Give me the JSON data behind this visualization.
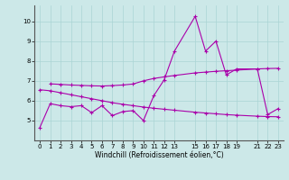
{
  "xlabel": "Windchill (Refroidissement éolien,°C)",
  "ylabel": "",
  "bg_color": "#cce8e8",
  "line_color": "#aa00aa",
  "grid_color": "#aad4d4",
  "xlim": [
    -0.5,
    23.5
  ],
  "ylim": [
    4.0,
    10.8
  ],
  "yticks": [
    5,
    6,
    7,
    8,
    9,
    10
  ],
  "xticks": [
    0,
    1,
    2,
    3,
    4,
    5,
    6,
    7,
    8,
    9,
    10,
    11,
    12,
    13,
    15,
    16,
    17,
    18,
    19,
    21,
    22,
    23
  ],
  "main_x": [
    0,
    1,
    2,
    3,
    4,
    5,
    6,
    7,
    8,
    9,
    10,
    11,
    12,
    13,
    15,
    16,
    17,
    18,
    19,
    21,
    22,
    23
  ],
  "main_y": [
    4.65,
    5.85,
    5.75,
    5.7,
    5.75,
    5.4,
    5.75,
    5.25,
    5.45,
    5.5,
    5.0,
    6.25,
    7.05,
    8.5,
    10.25,
    8.5,
    9.0,
    7.3,
    7.6,
    7.6,
    5.3,
    5.6
  ],
  "upper_x": [
    1,
    2,
    3,
    4,
    5,
    6,
    7,
    8,
    9,
    10,
    11,
    12,
    13,
    15,
    16,
    17,
    18,
    19,
    21,
    22,
    23
  ],
  "upper_y": [
    6.85,
    6.82,
    6.79,
    6.77,
    6.75,
    6.74,
    6.76,
    6.79,
    6.84,
    7.0,
    7.12,
    7.2,
    7.27,
    7.4,
    7.44,
    7.48,
    7.51,
    7.54,
    7.6,
    7.62,
    7.63
  ],
  "lower_x": [
    0,
    1,
    2,
    3,
    4,
    5,
    6,
    7,
    8,
    9,
    10,
    11,
    12,
    13,
    15,
    16,
    17,
    18,
    19,
    21,
    22,
    23
  ],
  "lower_y": [
    6.55,
    6.5,
    6.4,
    6.3,
    6.2,
    6.1,
    6.0,
    5.9,
    5.82,
    5.75,
    5.68,
    5.62,
    5.57,
    5.52,
    5.42,
    5.38,
    5.34,
    5.3,
    5.27,
    5.22,
    5.2,
    5.19
  ]
}
